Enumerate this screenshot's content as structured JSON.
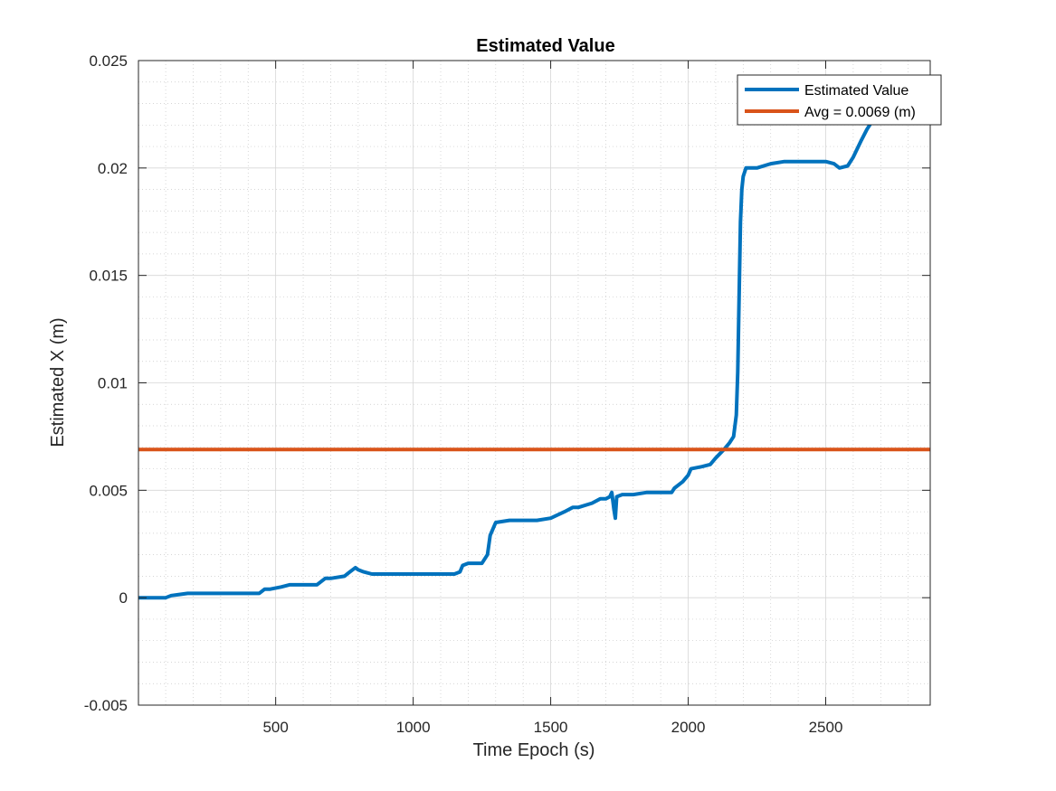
{
  "chart_data": {
    "type": "line",
    "title": "Estimated Value",
    "xlabel": "Time Epoch (s)",
    "ylabel": "Estimated X (m)",
    "xlim": [
      1,
      2880
    ],
    "ylim": [
      -0.005,
      0.025
    ],
    "xticks": [
      500,
      1000,
      1500,
      2000,
      2500
    ],
    "yticks": [
      -0.005,
      0,
      0.005,
      0.01,
      0.015,
      0.02,
      0.025
    ],
    "ytick_labels": [
      "-0.005",
      "0",
      "0.005",
      "0.01",
      "0.015",
      "0.02",
      "0.025"
    ],
    "grid": true,
    "minor_grid": true,
    "legend_position": "top-right",
    "series": [
      {
        "name": "Estimated Value",
        "color": "#0072BD",
        "x": [
          1,
          50,
          100,
          120,
          150,
          180,
          250,
          300,
          350,
          400,
          440,
          460,
          480,
          520,
          550,
          600,
          650,
          680,
          700,
          750,
          770,
          790,
          800,
          820,
          850,
          870,
          900,
          950,
          980,
          1000,
          1050,
          1100,
          1150,
          1170,
          1180,
          1200,
          1250,
          1270,
          1280,
          1300,
          1350,
          1400,
          1450,
          1500,
          1550,
          1580,
          1600,
          1650,
          1680,
          1700,
          1715,
          1722,
          1725,
          1730,
          1735,
          1740,
          1760,
          1800,
          1850,
          1900,
          1940,
          1950,
          1980,
          2000,
          2010,
          2050,
          2080,
          2100,
          2130,
          2150,
          2165,
          2175,
          2180,
          2185,
          2190,
          2195,
          2200,
          2210,
          2250,
          2300,
          2350,
          2400,
          2450,
          2500,
          2530,
          2550,
          2580,
          2600,
          2630,
          2650,
          2700,
          2750,
          2800,
          2850,
          2880
        ],
        "y": [
          0.0,
          0.0,
          0.0,
          0.0001,
          0.00015,
          0.0002,
          0.0002,
          0.0002,
          0.0002,
          0.0002,
          0.0002,
          0.0004,
          0.0004,
          0.0005,
          0.0006,
          0.0006,
          0.0006,
          0.0009,
          0.0009,
          0.001,
          0.0012,
          0.0014,
          0.0013,
          0.0012,
          0.0011,
          0.0011,
          0.0011,
          0.0011,
          0.0011,
          0.0011,
          0.0011,
          0.0011,
          0.0011,
          0.0012,
          0.0015,
          0.0016,
          0.0016,
          0.002,
          0.0029,
          0.0035,
          0.0036,
          0.0036,
          0.0036,
          0.0037,
          0.004,
          0.0042,
          0.0042,
          0.0044,
          0.0046,
          0.0046,
          0.0047,
          0.0049,
          0.0046,
          0.0041,
          0.0037,
          0.0047,
          0.0048,
          0.0048,
          0.0049,
          0.0049,
          0.0049,
          0.0051,
          0.0054,
          0.0057,
          0.006,
          0.0061,
          0.0062,
          0.0065,
          0.0069,
          0.0072,
          0.0075,
          0.0085,
          0.0105,
          0.014,
          0.0175,
          0.019,
          0.0196,
          0.02,
          0.02,
          0.0202,
          0.0203,
          0.0203,
          0.0203,
          0.0203,
          0.0202,
          0.02,
          0.0201,
          0.0205,
          0.0213,
          0.0218,
          0.0228,
          0.0231,
          0.023,
          0.0224,
          0.0222
        ]
      },
      {
        "name": "Avg = 0.0069 (m)",
        "color": "#D95319",
        "x": [
          1,
          2880
        ],
        "y": [
          0.0069,
          0.0069
        ]
      }
    ]
  }
}
